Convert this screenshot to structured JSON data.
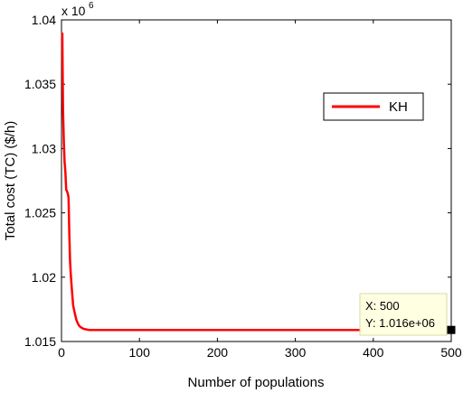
{
  "chart_data": {
    "type": "line",
    "title": "",
    "xlabel": "Number of populations",
    "ylabel": "Total cost (TC) ($/h)",
    "y_multiplier_label": "x 10",
    "y_multiplier_exponent": "6",
    "xlim": [
      0,
      500
    ],
    "ylim": [
      1.015,
      1.04
    ],
    "x_ticks": [
      "0",
      "100",
      "200",
      "300",
      "400",
      "500"
    ],
    "y_ticks": [
      "1.015",
      "1.02",
      "1.025",
      "1.03",
      "1.035",
      "1.04"
    ],
    "grid": false,
    "legend_position": "top-right",
    "series": [
      {
        "name": "KH",
        "color": "#ff0000",
        "x": [
          1,
          2,
          3,
          4,
          5,
          6,
          7,
          8,
          9,
          10,
          11,
          12,
          13,
          14,
          15,
          17,
          19,
          21,
          23,
          25,
          28,
          31,
          35,
          40,
          45,
          50,
          60,
          100,
          200,
          300,
          400,
          500
        ],
        "y": [
          1.039,
          1.033,
          1.0305,
          1.029,
          1.0282,
          1.0268,
          1.0267,
          1.0265,
          1.0262,
          1.0235,
          1.0212,
          1.0202,
          1.0193,
          1.0185,
          1.0178,
          1.0172,
          1.0167,
          1.0164,
          1.0162,
          1.0161,
          1.016,
          1.01595,
          1.0159,
          1.0159,
          1.0159,
          1.0159,
          1.0159,
          1.0159,
          1.0159,
          1.0159,
          1.0159,
          1.0159
        ]
      }
    ],
    "datatip": {
      "x": 500,
      "y": 1.0159,
      "x_text": "X: 500",
      "y_text": "Y: 1.016e+06"
    }
  }
}
